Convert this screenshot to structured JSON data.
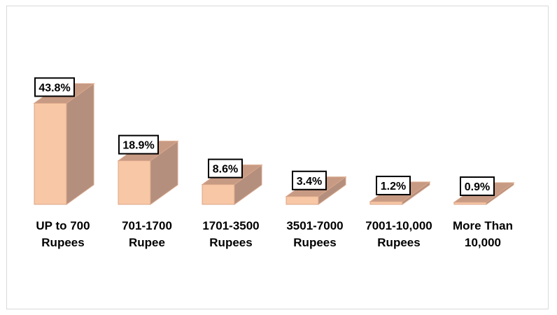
{
  "chart_data": {
    "type": "bar",
    "style": "3d-column",
    "categories": [
      [
        "UP to 700",
        "Rupees"
      ],
      [
        "701-1700",
        "Rupee"
      ],
      [
        "1701-3500",
        "Rupees"
      ],
      [
        "3501-7000",
        "Rupees"
      ],
      [
        "7001-10,000",
        "Rupees"
      ],
      [
        "More Than",
        "10,000"
      ]
    ],
    "values": [
      43.8,
      18.9,
      8.6,
      3.4,
      1.2,
      0.9
    ],
    "data_labels": [
      "43.8%",
      "18.9%",
      "8.6%",
      "3.4%",
      "1.2%",
      "0.9%"
    ],
    "unit": "%",
    "title": "",
    "xlabel": "",
    "ylabel": "",
    "ylim": [
      0,
      50
    ],
    "grid": false,
    "legend": "none",
    "colors": {
      "front": "#f8c7a5",
      "side": "#b48f7e",
      "top": "#c79a84",
      "edge": "#d9a78a"
    }
  }
}
